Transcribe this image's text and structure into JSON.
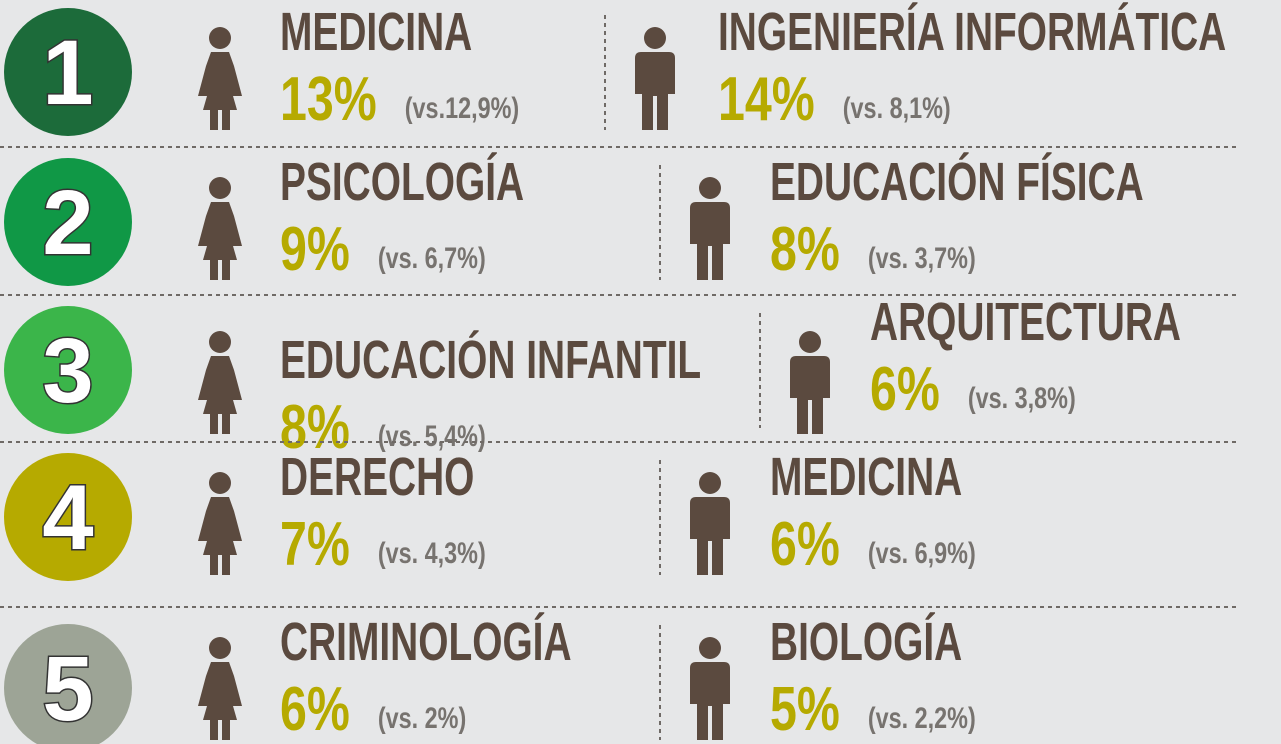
{
  "rows": [
    {
      "rank": 1,
      "color": "#1c6b3a",
      "female": {
        "subject": "MEDICINA",
        "percent": "13%",
        "comparison": "(vs.12,9%)"
      },
      "male": {
        "subject": "INGENIERÍA INFORMÁTICA",
        "percent": "14%",
        "comparison": "(vs. 8,1%)"
      }
    },
    {
      "rank": 2,
      "color": "#109846",
      "female": {
        "subject": "PSICOLOGÍA",
        "percent": "9%",
        "comparison": "(vs. 6,7%)"
      },
      "male": {
        "subject": "EDUCACIÓN FÍSICA",
        "percent": "8%",
        "comparison": "(vs. 3,7%)"
      }
    },
    {
      "rank": 3,
      "color": "#3bb54a",
      "female": {
        "subject": "EDUCACIÓN INFANTIL",
        "percent": "8%",
        "comparison": "(vs. 5,4%)"
      },
      "male": {
        "subject": "ARQUITECTURA",
        "percent": "6%",
        "comparison": "(vs. 3,8%)"
      }
    },
    {
      "rank": 4,
      "color": "#b6aa00",
      "female": {
        "subject": "DERECHO",
        "percent": "7%",
        "comparison": "(vs. 4,3%)"
      },
      "male": {
        "subject": "MEDICINA",
        "percent": "6%",
        "comparison": "(vs. 6,9%)"
      }
    },
    {
      "rank": 5,
      "color": "#9da496",
      "female": {
        "subject": "CRIMINOLOGÍA",
        "percent": "6%",
        "comparison": "(vs. 2%)"
      },
      "male": {
        "subject": "BIOLOGÍA",
        "percent": "5%",
        "comparison": "(vs. 2,2%)"
      }
    }
  ]
}
